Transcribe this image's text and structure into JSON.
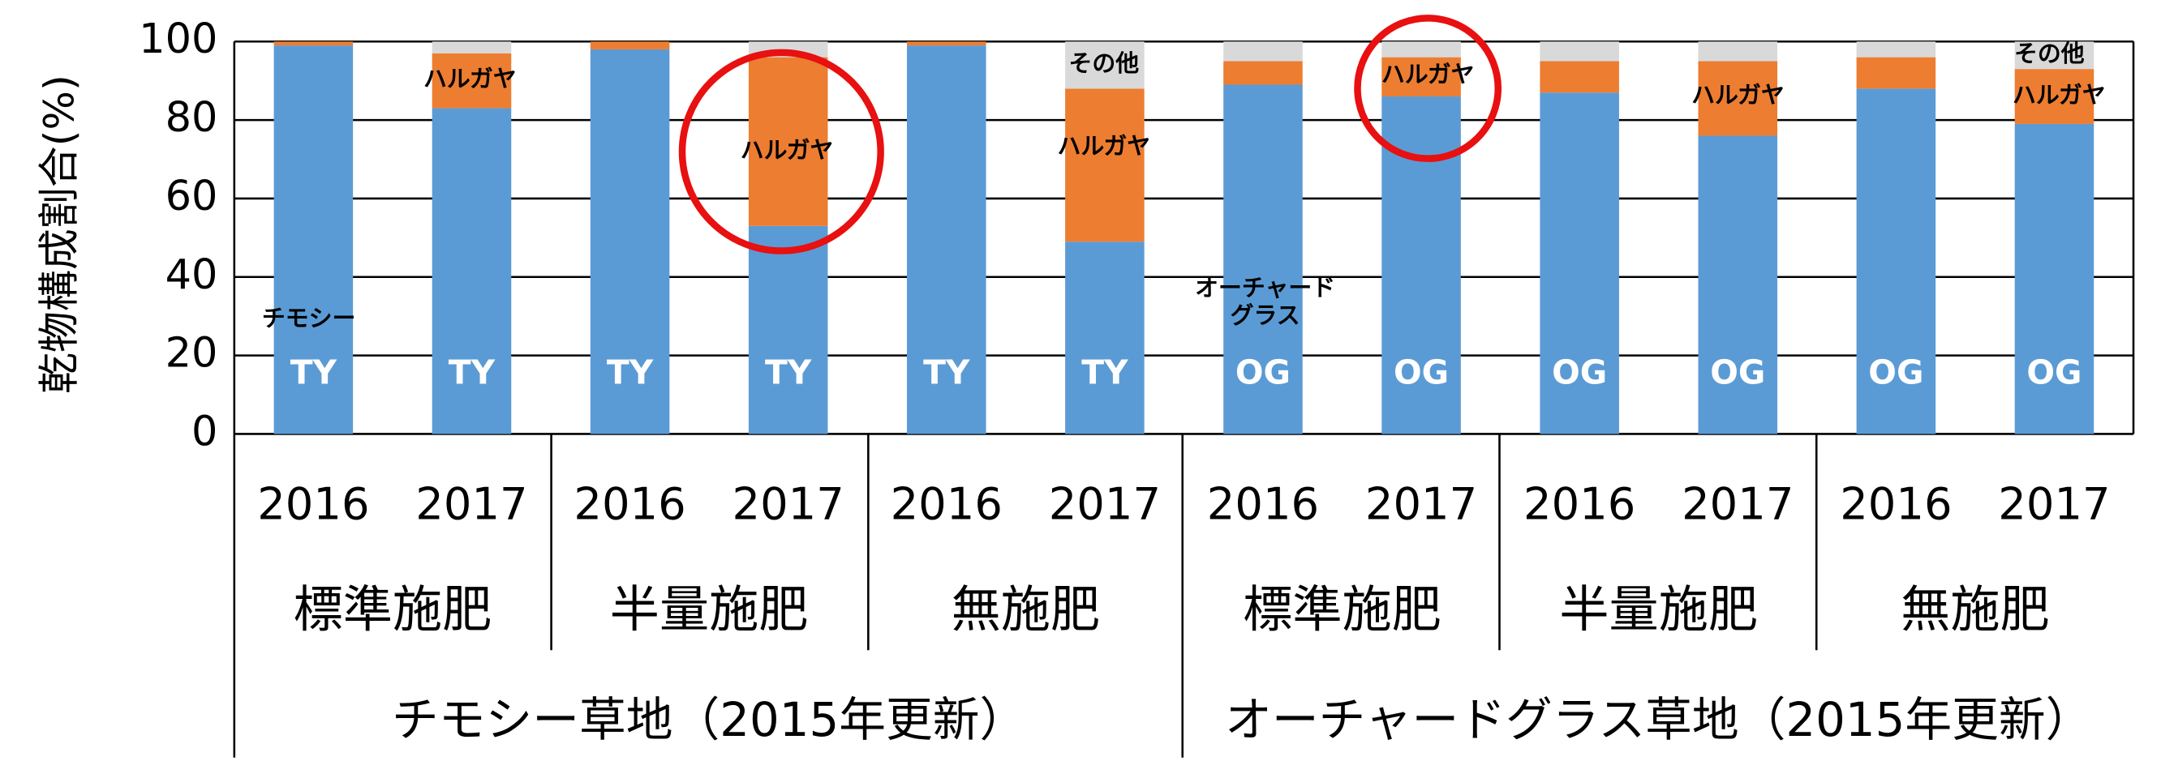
{
  "chart_data": {
    "type": "bar",
    "stacked": true,
    "y_label": "乾物構成割合(%)",
    "categories": [
      "2016",
      "2017",
      "2016",
      "2017",
      "2016",
      "2017",
      "2016",
      "2017",
      "2016",
      "2017",
      "2016",
      "2017"
    ],
    "groups": [
      "標準施肥",
      "半量施肥",
      "無施肥",
      "標準施肥",
      "半量施肥",
      "無施肥"
    ],
    "supergroups": [
      "チモシー草地（2015年更新）",
      "オーチャードグラス草地（2015年更新）"
    ],
    "bar_labels": [
      "TY",
      "TY",
      "TY",
      "TY",
      "TY",
      "TY",
      "OG",
      "OG",
      "OG",
      "OG",
      "OG",
      "OG"
    ],
    "series": [
      {
        "color": "#5b9bd5",
        "values": [
          99,
          83,
          98,
          53,
          99,
          49,
          89,
          86,
          87,
          76,
          88,
          79
        ]
      },
      {
        "color": "#ed7d31",
        "values": [
          1,
          14,
          2,
          43,
          1,
          39,
          6,
          10,
          8,
          19,
          8,
          14
        ]
      },
      {
        "color": "#d9d9d9",
        "values": [
          0,
          3,
          0,
          4,
          0,
          12,
          5,
          4,
          5,
          5,
          4,
          7
        ]
      }
    ],
    "annotations": [
      "チモシー",
      "ハルガヤ",
      "ハルガヤ",
      "その他",
      "ハルガヤ",
      "オーチャード",
      "グラス",
      "ハルガヤ",
      "ハルガヤ",
      "その他",
      "ハルガヤ"
    ],
    "ylim": [
      0,
      100
    ],
    "yticks": [
      0,
      20,
      40,
      60,
      80,
      100
    ],
    "grid": true
  }
}
